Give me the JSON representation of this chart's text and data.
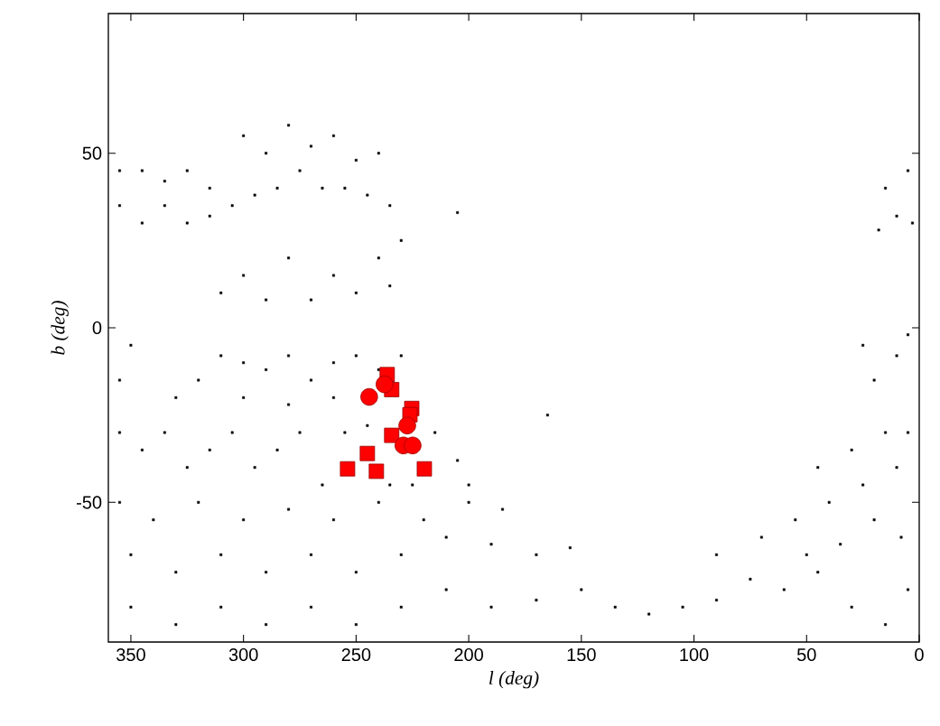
{
  "chart_data": {
    "type": "scatter",
    "xlabel": "l (deg)",
    "ylabel": "b (deg)",
    "xlim": [
      360,
      0
    ],
    "ylim": [
      -90,
      90
    ],
    "xticks": [
      350,
      300,
      250,
      200,
      150,
      100,
      50,
      0
    ],
    "yticks": [
      -50,
      0,
      50
    ],
    "series": [
      {
        "color": "#000000",
        "marker": "square",
        "x": [
          355,
          345,
          335,
          325,
          315,
          355,
          345,
          335,
          325,
          315,
          305,
          295,
          285,
          275,
          265,
          255,
          245,
          235,
          300,
          280,
          260,
          240,
          290,
          270,
          250,
          230,
          240,
          260,
          280,
          300,
          310,
          290,
          270,
          250,
          235,
          205,
          310,
          300,
          290,
          280,
          270,
          260,
          250,
          240,
          230,
          320,
          330,
          300,
          280,
          260,
          350,
          355,
          355,
          345,
          335,
          325,
          315,
          305,
          295,
          285,
          275,
          265,
          255,
          245,
          235,
          225,
          215,
          205,
          200,
          355,
          340,
          320,
          300,
          280,
          260,
          240,
          220,
          200,
          185,
          350,
          330,
          310,
          290,
          270,
          250,
          230,
          210,
          190,
          170,
          155,
          350,
          330,
          310,
          290,
          270,
          250,
          230,
          210,
          190,
          170,
          150,
          135,
          120,
          105,
          90,
          75,
          60,
          45,
          30,
          15,
          5,
          90,
          70,
          55,
          40,
          25,
          10,
          5,
          15,
          30,
          45,
          20,
          35,
          8,
          50,
          20,
          10,
          5,
          25,
          165,
          15,
          5,
          10,
          18,
          3
        ],
        "values": [
          45,
          45,
          42,
          45,
          40,
          35,
          30,
          35,
          30,
          32,
          35,
          38,
          40,
          45,
          40,
          40,
          38,
          35,
          55,
          58,
          55,
          50,
          50,
          52,
          48,
          25,
          20,
          15,
          20,
          15,
          10,
          8,
          8,
          10,
          12,
          33,
          -8,
          -10,
          -12,
          -8,
          -15,
          -10,
          -8,
          -12,
          -8,
          -15,
          -20,
          -20,
          -22,
          -20,
          -5,
          -15,
          -30,
          -35,
          -30,
          -40,
          -35,
          -30,
          -40,
          -35,
          -30,
          -45,
          -30,
          -28,
          -45,
          -45,
          -30,
          -38,
          -45,
          -50,
          -55,
          -50,
          -55,
          -52,
          -55,
          -50,
          -55,
          -50,
          -52,
          -65,
          -70,
          -65,
          -70,
          -65,
          -70,
          -65,
          -60,
          -62,
          -65,
          -63,
          -80,
          -85,
          -80,
          -85,
          -80,
          -85,
          -80,
          -75,
          -80,
          -78,
          -75,
          -80,
          -82,
          -80,
          -78,
          -72,
          -75,
          -70,
          -80,
          -85,
          -75,
          -65,
          -60,
          -55,
          -50,
          -45,
          -40,
          -30,
          -30,
          -35,
          -40,
          -55,
          -62,
          -60,
          -65,
          -15,
          -8,
          -2,
          -5,
          -25,
          40,
          45,
          32,
          28,
          30
        ]
      },
      {
        "color": "#ff0000",
        "marker": "square",
        "x": [
          236.2,
          234.2,
          225.3,
          226.1,
          234.2,
          245.0,
          253.8,
          241.0,
          219.7
        ],
        "values": [
          -13.4,
          -17.7,
          -23.1,
          -24.9,
          -30.8,
          -36.0,
          -40.4,
          -41.1,
          -40.4
        ]
      },
      {
        "color": "#ff0000",
        "marker": "circle",
        "x": [
          237.4,
          244.2,
          227.3,
          229.0,
          224.9
        ],
        "values": [
          -16.2,
          -19.8,
          -28.0,
          -33.7,
          -33.7
        ]
      }
    ]
  }
}
